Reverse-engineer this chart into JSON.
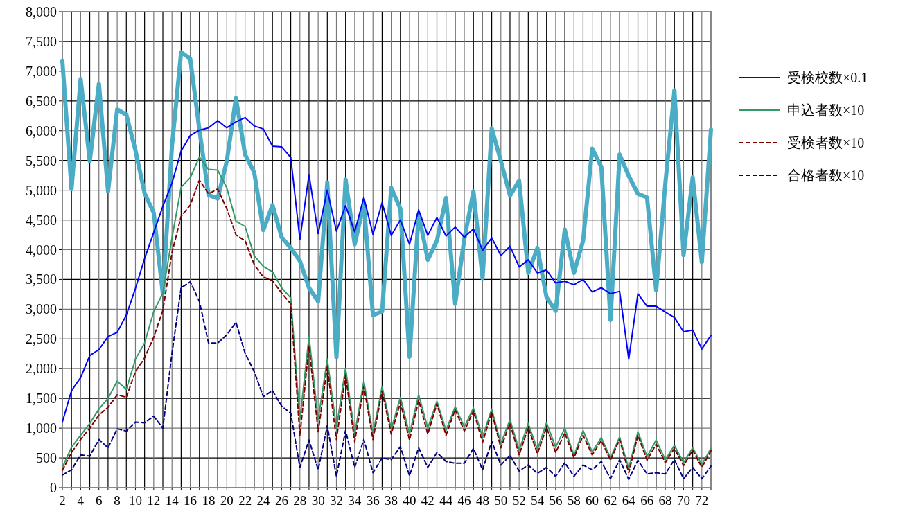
{
  "chart_data": {
    "type": "line",
    "xlim": [
      2,
      73
    ],
    "xticks": [
      2,
      {
        "value": 3,
        "label": null
      },
      4,
      {
        "value": 5,
        "label": null
      },
      6,
      {
        "value": 7,
        "label": null
      },
      8,
      {
        "value": 9,
        "label": null
      },
      10,
      {
        "value": 11,
        "label": null
      },
      12,
      {
        "value": 13,
        "label": null
      },
      14,
      {
        "value": 15,
        "label": null
      },
      16,
      {
        "value": 17,
        "label": null
      },
      18,
      {
        "value": 19,
        "label": null
      },
      20,
      {
        "value": 21,
        "label": null
      },
      22,
      {
        "value": 23,
        "label": null
      },
      24,
      {
        "value": 25,
        "label": null
      },
      26,
      {
        "value": 27,
        "label": null
      },
      28,
      {
        "value": 29,
        "label": null
      },
      30,
      {
        "value": 31,
        "label": null
      },
      32,
      {
        "value": 33,
        "label": null
      },
      34,
      {
        "value": 35,
        "label": null
      },
      36,
      {
        "value": 37,
        "label": null
      },
      38,
      {
        "value": 39,
        "label": null
      },
      40,
      {
        "value": 41,
        "label": null
      },
      42,
      {
        "value": 43,
        "label": null
      },
      44,
      {
        "value": 45,
        "label": null
      },
      46,
      {
        "value": 47,
        "label": null
      },
      48,
      {
        "value": 49,
        "label": null
      },
      50,
      {
        "value": 51,
        "label": null
      },
      52,
      {
        "value": 53,
        "label": null
      },
      54,
      {
        "value": 55,
        "label": null
      },
      56,
      {
        "value": 57,
        "label": null
      },
      58,
      {
        "value": 59,
        "label": null
      },
      60,
      {
        "value": 61,
        "label": null
      },
      62,
      {
        "value": 63,
        "label": null
      },
      64,
      {
        "value": 65,
        "label": null
      },
      66,
      {
        "value": 67,
        "label": null
      },
      68,
      {
        "value": 69,
        "label": null
      },
      70,
      {
        "value": 71,
        "label": null
      },
      72,
      {
        "value": 73,
        "label": null
      }
    ],
    "ylim": [
      0,
      8000
    ],
    "yticks": [
      {
        "value": 0,
        "label": "0"
      },
      {
        "value": 500,
        "label": "500"
      },
      {
        "value": 1000,
        "label": "1,000"
      },
      {
        "value": 1500,
        "label": "1,500"
      },
      {
        "value": 2000,
        "label": "2,000"
      },
      {
        "value": 2500,
        "label": "2,500"
      },
      {
        "value": 3000,
        "label": "3,000"
      },
      {
        "value": 3500,
        "label": "3,500"
      },
      {
        "value": 4000,
        "label": "4,000"
      },
      {
        "value": 4500,
        "label": "4,500"
      },
      {
        "value": 5000,
        "label": "5,000"
      },
      {
        "value": 5500,
        "label": "5,500"
      },
      {
        "value": 6000,
        "label": "6,000"
      },
      {
        "value": 6500,
        "label": "6,500"
      },
      {
        "value": 7000,
        "label": "7,000"
      },
      {
        "value": 7500,
        "label": "7,500"
      },
      {
        "value": 8000,
        "label": "8,000"
      }
    ],
    "grid": true,
    "legend": "right",
    "marker": "none",
    "x": [
      2,
      3,
      4,
      5,
      6,
      7,
      8,
      9,
      10,
      11,
      12,
      13,
      14,
      15,
      16,
      17,
      18,
      19,
      20,
      21,
      22,
      23,
      24,
      25,
      26,
      27,
      28,
      29,
      30,
      31,
      32,
      33,
      34,
      35,
      36,
      37,
      38,
      39,
      40,
      41,
      42,
      43,
      44,
      45,
      46,
      47,
      48,
      49,
      50,
      51,
      52,
      53,
      54,
      55,
      56,
      57,
      58,
      59,
      60,
      61,
      62,
      63,
      64,
      65,
      66,
      67,
      68,
      69,
      70,
      71,
      72,
      73
    ],
    "series": [
      {
        "color": "#4bacc6",
        "line_style": "solid",
        "values": [
          7175,
          5020,
          6870,
          5490,
          6790,
          4980,
          6360,
          6270,
          5670,
          4950,
          4620,
          3260,
          5750,
          7320,
          7210,
          6020,
          4920,
          4860,
          5490,
          6550,
          5600,
          5300,
          4330,
          4750,
          4210,
          4030,
          3810,
          3360,
          3130,
          5130,
          2190,
          5180,
          4090,
          4770,
          2900,
          2960,
          5040,
          4690,
          2200,
          4600,
          3830,
          4150,
          4870,
          3090,
          4180,
          4980,
          3520,
          6040,
          5490,
          4910,
          5160,
          3610,
          4030,
          3200,
          2970,
          4340,
          3610,
          4150,
          5700,
          5390,
          2820,
          5600,
          5240,
          4940,
          4880,
          3320,
          5100,
          6680,
          3910,
          5220,
          3790,
          6020
        ]
      },
      {
        "name": "受検校数×0.1",
        "color": "#0000ff",
        "line_style": "solid",
        "values": [
          1100,
          1630,
          1850,
          2220,
          2320,
          2540,
          2610,
          2900,
          3350,
          3850,
          4290,
          4730,
          5120,
          5660,
          5920,
          6010,
          6050,
          6170,
          6050,
          6150,
          6220,
          6080,
          6030,
          5740,
          5730,
          5550,
          4170,
          5260,
          4270,
          5000,
          4310,
          4740,
          4300,
          4880,
          4260,
          4790,
          4240,
          4500,
          4090,
          4670,
          4240,
          4540,
          4230,
          4380,
          4210,
          4350,
          3990,
          4200,
          3900,
          4060,
          3710,
          3830,
          3610,
          3660,
          3440,
          3470,
          3410,
          3500,
          3290,
          3360,
          3260,
          3300,
          2160,
          3260,
          3050,
          3050,
          2950,
          2860,
          2620,
          2650,
          2330,
          2560
        ]
      },
      {
        "name": "申込者数×10",
        "color": "#339966",
        "line_style": "solid",
        "values": [
          340,
          680,
          880,
          1080,
          1320,
          1500,
          1790,
          1650,
          2160,
          2430,
          2960,
          3270,
          4200,
          5050,
          5210,
          5560,
          5350,
          5340,
          5040,
          4480,
          4390,
          3900,
          3720,
          3630,
          3360,
          3190,
          1140,
          2540,
          1140,
          2160,
          1000,
          2010,
          900,
          1790,
          900,
          1700,
          980,
          1520,
          900,
          1560,
          1000,
          1450,
          960,
          1360,
          1020,
          1340,
          850,
          1320,
          740,
          1140,
          630,
          1080,
          640,
          1090,
          680,
          1000,
          540,
          960,
          600,
          840,
          500,
          850,
          320,
          940,
          520,
          800,
          470,
          710,
          420,
          670,
          390,
          660
        ]
      },
      {
        "name": "受検者数×10",
        "color": "#800000",
        "line_style": "dashed",
        "values": [
          290,
          590,
          810,
          1000,
          1220,
          1350,
          1560,
          1520,
          1950,
          2180,
          2530,
          2980,
          3950,
          4560,
          4750,
          5170,
          4940,
          5020,
          4690,
          4250,
          4150,
          3750,
          3540,
          3480,
          3270,
          3090,
          870,
          2380,
          940,
          2030,
          810,
          1890,
          770,
          1700,
          810,
          1620,
          900,
          1430,
          800,
          1470,
          900,
          1410,
          880,
          1310,
          950,
          1290,
          760,
          1270,
          670,
          1080,
          550,
          1010,
          570,
          1010,
          590,
          920,
          500,
          880,
          550,
          790,
          460,
          810,
          250,
          880,
          460,
          730,
          420,
          660,
          370,
          630,
          340,
          620
        ]
      },
      {
        "name": "合格者数×10",
        "color": "#000080",
        "line_style": "dashed",
        "values": [
          210,
          300,
          550,
          530,
          810,
          670,
          990,
          950,
          1100,
          1090,
          1200,
          1000,
          2260,
          3360,
          3460,
          3130,
          2430,
          2430,
          2570,
          2780,
          2260,
          1950,
          1530,
          1630,
          1370,
          1250,
          340,
          800,
          300,
          1040,
          190,
          960,
          340,
          810,
          250,
          500,
          470,
          690,
          200,
          670,
          340,
          590,
          440,
          410,
          410,
          660,
          300,
          780,
          380,
          540,
          280,
          380,
          240,
          340,
          190,
          420,
          190,
          380,
          300,
          440,
          150,
          470,
          140,
          460,
          230,
          250,
          230,
          470,
          150,
          340,
          150,
          360
        ]
      }
    ]
  }
}
